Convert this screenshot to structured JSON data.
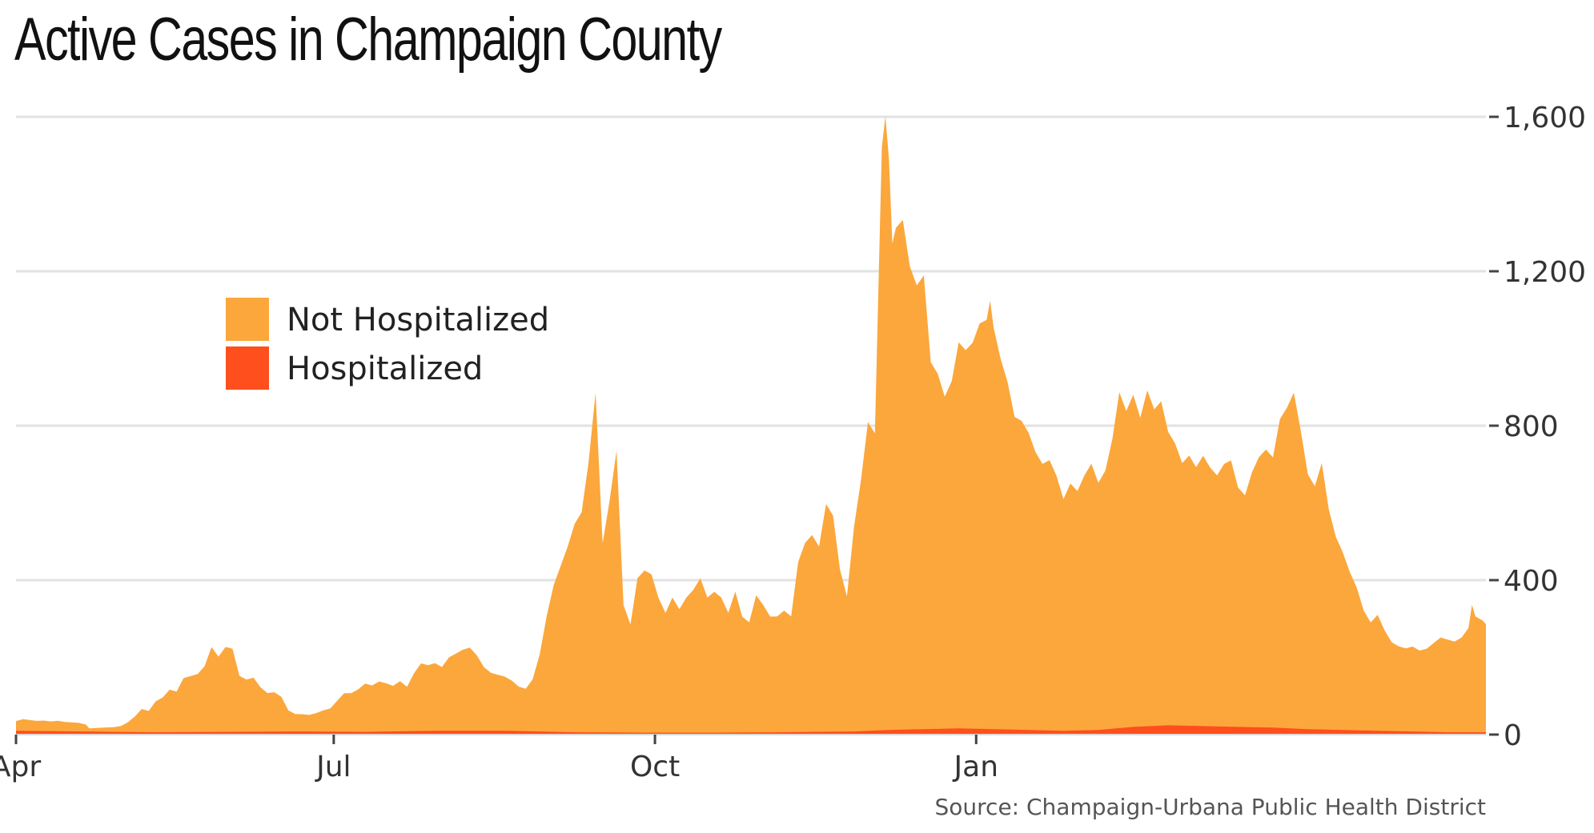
{
  "chart_data": {
    "type": "area",
    "stacked": true,
    "title": "Active Cases in Champaign County",
    "source": "Source: Champaign-Urbana Public Health District",
    "x_axis": {
      "ticks": [
        "Apr",
        "Jul",
        "Oct",
        "Jan"
      ],
      "range_days": [
        0,
        364
      ]
    },
    "y_axis": {
      "ticks": [
        0,
        400,
        800,
        1200,
        1600
      ],
      "tick_labels": [
        "0",
        "400",
        "800",
        "1,200",
        "1,600"
      ],
      "range": [
        0,
        1600
      ],
      "position": "right"
    },
    "grid": true,
    "legend": {
      "placement": "left-center"
    },
    "colors": {
      "not_hospitalized": "#FBA73C",
      "hospitalized": "#FE4F1D",
      "grid": "#e2e2e2",
      "text": "#333333"
    },
    "series": [
      {
        "name": "Not Hospitalized",
        "points": [
          [
            0,
            25
          ],
          [
            2,
            30
          ],
          [
            4,
            28
          ],
          [
            6,
            26
          ],
          [
            8,
            27
          ],
          [
            10,
            25
          ],
          [
            12,
            27
          ],
          [
            14,
            24
          ],
          [
            16,
            23
          ],
          [
            18,
            22
          ],
          [
            20,
            18
          ],
          [
            21,
            8
          ],
          [
            24,
            10
          ],
          [
            28,
            12
          ],
          [
            30,
            15
          ],
          [
            32,
            25
          ],
          [
            34,
            40
          ],
          [
            36,
            60
          ],
          [
            38,
            55
          ],
          [
            40,
            80
          ],
          [
            42,
            90
          ],
          [
            44,
            110
          ],
          [
            46,
            105
          ],
          [
            48,
            140
          ],
          [
            50,
            145
          ],
          [
            52,
            150
          ],
          [
            54,
            170
          ],
          [
            56,
            220
          ],
          [
            58,
            195
          ],
          [
            60,
            220
          ],
          [
            62,
            215
          ],
          [
            64,
            145
          ],
          [
            66,
            135
          ],
          [
            68,
            140
          ],
          [
            70,
            115
          ],
          [
            72,
            100
          ],
          [
            74,
            102
          ],
          [
            76,
            90
          ],
          [
            78,
            55
          ],
          [
            80,
            45
          ],
          [
            82,
            45
          ],
          [
            84,
            43
          ],
          [
            86,
            48
          ],
          [
            88,
            55
          ],
          [
            90,
            60
          ],
          [
            92,
            80
          ],
          [
            94,
            100
          ],
          [
            96,
            100
          ],
          [
            98,
            110
          ],
          [
            100,
            125
          ],
          [
            102,
            120
          ],
          [
            104,
            130
          ],
          [
            106,
            125
          ],
          [
            108,
            118
          ],
          [
            110,
            130
          ],
          [
            112,
            115
          ],
          [
            114,
            150
          ],
          [
            116,
            175
          ],
          [
            118,
            170
          ],
          [
            120,
            175
          ],
          [
            122,
            165
          ],
          [
            124,
            190
          ],
          [
            126,
            200
          ],
          [
            128,
            210
          ],
          [
            130,
            215
          ],
          [
            132,
            195
          ],
          [
            134,
            165
          ],
          [
            136,
            150
          ],
          [
            138,
            145
          ],
          [
            140,
            140
          ],
          [
            142,
            130
          ],
          [
            144,
            115
          ],
          [
            146,
            110
          ],
          [
            148,
            135
          ],
          [
            150,
            200
          ],
          [
            152,
            300
          ],
          [
            154,
            380
          ],
          [
            156,
            430
          ],
          [
            158,
            480
          ],
          [
            160,
            540
          ],
          [
            162,
            570
          ],
          [
            164,
            700
          ],
          [
            166,
            880
          ],
          [
            168,
            490
          ],
          [
            170,
            600
          ],
          [
            172,
            730
          ],
          [
            174,
            330
          ],
          [
            176,
            280
          ],
          [
            178,
            400
          ],
          [
            180,
            420
          ],
          [
            182,
            410
          ],
          [
            184,
            350
          ],
          [
            186,
            310
          ],
          [
            188,
            350
          ],
          [
            190,
            320
          ],
          [
            192,
            350
          ],
          [
            194,
            370
          ],
          [
            196,
            400
          ],
          [
            198,
            350
          ],
          [
            200,
            365
          ],
          [
            202,
            350
          ],
          [
            204,
            310
          ],
          [
            206,
            365
          ],
          [
            208,
            300
          ],
          [
            210,
            285
          ],
          [
            212,
            355
          ],
          [
            214,
            330
          ],
          [
            216,
            300
          ],
          [
            218,
            300
          ],
          [
            220,
            315
          ],
          [
            222,
            300
          ],
          [
            224,
            440
          ],
          [
            226,
            490
          ],
          [
            228,
            510
          ],
          [
            230,
            480
          ],
          [
            232,
            590
          ],
          [
            234,
            560
          ],
          [
            236,
            420
          ],
          [
            238,
            350
          ],
          [
            240,
            530
          ],
          [
            242,
            650
          ],
          [
            244,
            800
          ],
          [
            246,
            770
          ],
          [
            248,
            1510
          ],
          [
            249,
            1590
          ],
          [
            250,
            1480
          ],
          [
            251,
            1260
          ],
          [
            252,
            1300
          ],
          [
            254,
            1320
          ],
          [
            256,
            1200
          ],
          [
            258,
            1150
          ],
          [
            260,
            1175
          ],
          [
            262,
            950
          ],
          [
            264,
            920
          ],
          [
            266,
            860
          ],
          [
            268,
            900
          ],
          [
            270,
            1000
          ],
          [
            272,
            980
          ],
          [
            274,
            1000
          ],
          [
            276,
            1050
          ],
          [
            278,
            1060
          ],
          [
            279,
            1110
          ],
          [
            280,
            1040
          ],
          [
            282,
            960
          ],
          [
            284,
            900
          ],
          [
            286,
            810
          ],
          [
            288,
            800
          ],
          [
            290,
            770
          ],
          [
            292,
            720
          ],
          [
            294,
            690
          ],
          [
            296,
            700
          ],
          [
            298,
            660
          ],
          [
            300,
            600
          ],
          [
            302,
            640
          ],
          [
            304,
            620
          ],
          [
            306,
            660
          ],
          [
            308,
            690
          ],
          [
            310,
            640
          ],
          [
            312,
            670
          ],
          [
            314,
            750
          ],
          [
            316,
            870
          ],
          [
            318,
            820
          ],
          [
            320,
            860
          ],
          [
            322,
            800
          ],
          [
            324,
            870
          ],
          [
            326,
            820
          ],
          [
            328,
            840
          ],
          [
            330,
            760
          ],
          [
            332,
            730
          ],
          [
            334,
            680
          ],
          [
            336,
            700
          ],
          [
            338,
            670
          ],
          [
            340,
            700
          ],
          [
            342,
            670
          ],
          [
            344,
            650
          ],
          [
            346,
            680
          ],
          [
            348,
            690
          ],
          [
            350,
            620
          ],
          [
            352,
            600
          ],
          [
            354,
            660
          ],
          [
            356,
            700
          ],
          [
            358,
            720
          ],
          [
            360,
            700
          ],
          [
            362,
            800
          ],
          [
            364,
            830
          ],
          [
            366,
            870
          ],
          [
            368,
            770
          ],
          [
            370,
            660
          ],
          [
            372,
            630
          ],
          [
            374,
            690
          ],
          [
            376,
            570
          ],
          [
            378,
            500
          ],
          [
            380,
            460
          ],
          [
            382,
            410
          ],
          [
            384,
            370
          ],
          [
            386,
            310
          ],
          [
            388,
            280
          ],
          [
            390,
            300
          ],
          [
            392,
            260
          ],
          [
            394,
            230
          ],
          [
            396,
            220
          ],
          [
            398,
            215
          ],
          [
            400,
            220
          ],
          [
            402,
            210
          ],
          [
            404,
            215
          ],
          [
            406,
            230
          ],
          [
            408,
            245
          ],
          [
            410,
            240
          ],
          [
            412,
            235
          ],
          [
            414,
            245
          ],
          [
            416,
            270
          ],
          [
            417,
            330
          ],
          [
            418,
            300
          ],
          [
            420,
            290
          ],
          [
            421,
            280
          ]
        ]
      },
      {
        "name": "Hospitalized",
        "points": [
          [
            0,
            10
          ],
          [
            20,
            8
          ],
          [
            40,
            6
          ],
          [
            60,
            7
          ],
          [
            80,
            8
          ],
          [
            100,
            7
          ],
          [
            120,
            10
          ],
          [
            140,
            10
          ],
          [
            160,
            6
          ],
          [
            180,
            5
          ],
          [
            200,
            5
          ],
          [
            220,
            6
          ],
          [
            240,
            8
          ],
          [
            250,
            12
          ],
          [
            260,
            14
          ],
          [
            270,
            16
          ],
          [
            280,
            14
          ],
          [
            300,
            10
          ],
          [
            310,
            12
          ],
          [
            320,
            20
          ],
          [
            330,
            24
          ],
          [
            340,
            22
          ],
          [
            350,
            20
          ],
          [
            360,
            18
          ],
          [
            370,
            14
          ],
          [
            380,
            12
          ],
          [
            390,
            10
          ],
          [
            400,
            8
          ],
          [
            410,
            6
          ],
          [
            421,
            6
          ]
        ]
      }
    ]
  }
}
